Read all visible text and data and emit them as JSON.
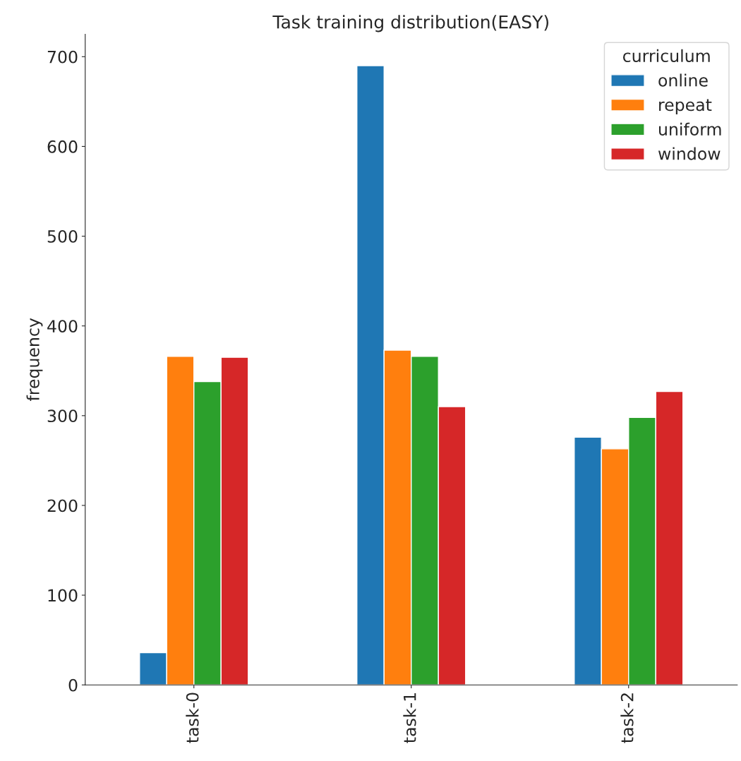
{
  "chart_data": {
    "type": "bar",
    "title": "Task training distribution(EASY)",
    "ylabel": "frequency",
    "legend_title": "curriculum",
    "categories": [
      "task-0",
      "task-1",
      "task-2"
    ],
    "series": [
      {
        "name": "online",
        "color": "#1f77b4",
        "values": [
          36,
          690,
          276
        ]
      },
      {
        "name": "repeat",
        "color": "#ff7f0e",
        "values": [
          366,
          373,
          263
        ]
      },
      {
        "name": "uniform",
        "color": "#2ca02c",
        "values": [
          338,
          366,
          298
        ]
      },
      {
        "name": "window",
        "color": "#d62728",
        "values": [
          365,
          310,
          327
        ]
      }
    ],
    "ylim": [
      0,
      725
    ],
    "yticks": [
      0,
      100,
      200,
      300,
      400,
      500,
      600,
      700
    ],
    "grid": false,
    "legend": "top right"
  }
}
